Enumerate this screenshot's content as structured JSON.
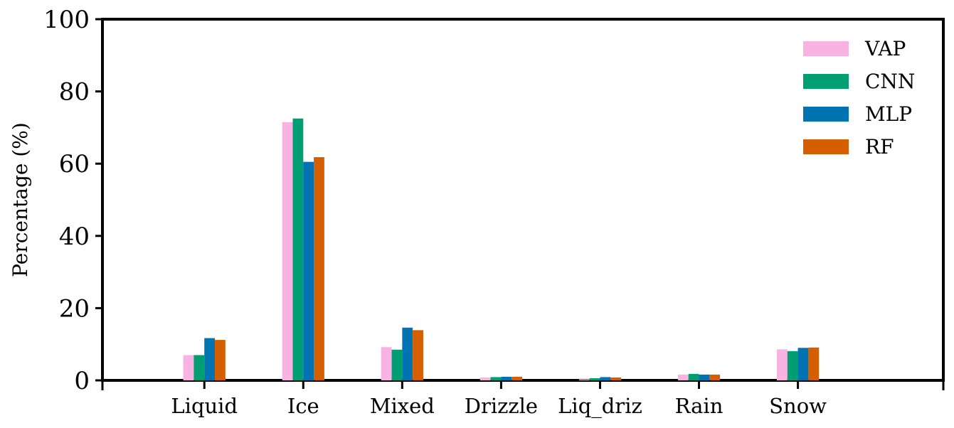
{
  "chart_data": {
    "type": "bar",
    "title": "",
    "xlabel": "",
    "ylabel": "Percentage (%)",
    "ylim": [
      0,
      100
    ],
    "yticks": [
      0,
      20,
      40,
      60,
      80,
      100
    ],
    "categories": [
      "Liquid",
      "Ice",
      "Mixed",
      "Drizzle",
      "Liq_driz",
      "Rain",
      "Snow"
    ],
    "series": [
      {
        "name": "VAP",
        "color": "#f9b3e3",
        "values": [
          7.0,
          71.5,
          9.2,
          0.8,
          0.3,
          1.6,
          8.6
        ]
      },
      {
        "name": "CNN",
        "color": "#029e73",
        "values": [
          7.0,
          72.5,
          8.5,
          0.9,
          0.6,
          1.8,
          8.1
        ]
      },
      {
        "name": "MLP",
        "color": "#0173b2",
        "values": [
          11.7,
          60.5,
          14.6,
          1.0,
          0.9,
          1.6,
          9.0
        ]
      },
      {
        "name": "RF",
        "color": "#d55e00",
        "values": [
          11.2,
          61.8,
          13.9,
          1.0,
          0.8,
          1.6,
          9.1
        ]
      }
    ],
    "legend_position": "top-right",
    "grid": false
  }
}
